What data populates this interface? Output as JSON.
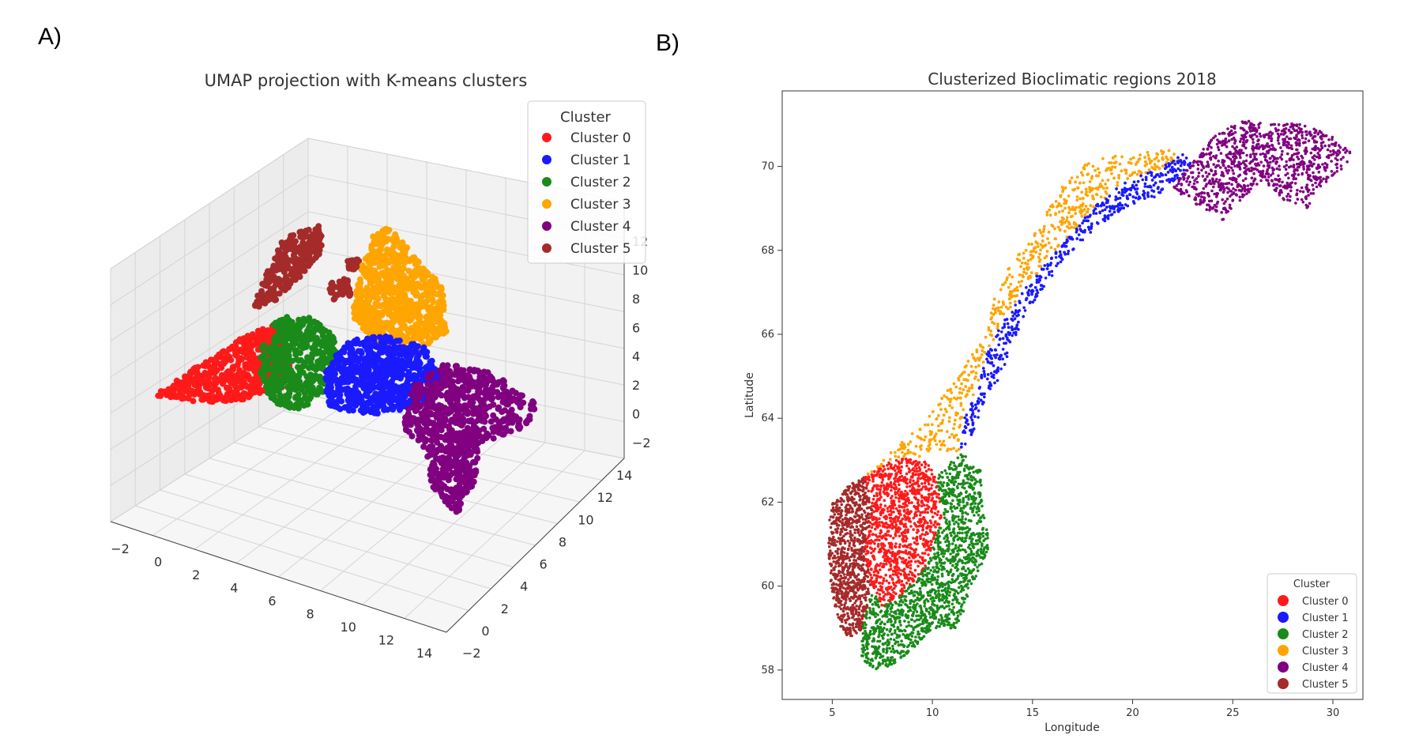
{
  "panels": {
    "a_label": "A)",
    "b_label": "B)"
  },
  "colors": {
    "Cluster 0": "#ff1a1a",
    "Cluster 1": "#1a1aff",
    "Cluster 2": "#1a8a1a",
    "Cluster 3": "#ffa500",
    "Cluster 4": "#800080",
    "Cluster 5": "#a52a2a"
  },
  "chart_data": [
    {
      "type": "scatter",
      "projection": "3d",
      "title": "UMAP projection with K-means clusters",
      "legend": {
        "title": "Cluster",
        "placement": "top-right",
        "entries": [
          "Cluster 0",
          "Cluster 1",
          "Cluster 2",
          "Cluster 3",
          "Cluster 4",
          "Cluster 5"
        ]
      },
      "x_ticks": [
        "−2",
        "0",
        "2",
        "4",
        "6",
        "8",
        "10",
        "12",
        "14"
      ],
      "y_ticks": [
        "−2",
        "0",
        "2",
        "4",
        "6",
        "8",
        "10",
        "12",
        "14"
      ],
      "z_ticks": [
        "−2",
        "0",
        "2",
        "4",
        "6",
        "8",
        "10",
        "12"
      ],
      "xlim": [
        -2,
        14
      ],
      "ylim": [
        -2,
        14
      ],
      "zlim": [
        -2,
        12
      ],
      "grid": true
    },
    {
      "type": "scatter",
      "title": "Clusterized Bioclimatic regions 2018",
      "xlabel": "Longitude",
      "ylabel": "Latitude",
      "x_ticks": [
        "5",
        "10",
        "15",
        "20",
        "25",
        "30"
      ],
      "y_ticks": [
        "58",
        "60",
        "62",
        "64",
        "66",
        "68",
        "70"
      ],
      "xlim": [
        2.5,
        31.5
      ],
      "ylim": [
        57.3,
        71.8
      ],
      "legend": {
        "title": "Cluster",
        "placement": "lower-right",
        "entries": [
          "Cluster 0",
          "Cluster 1",
          "Cluster 2",
          "Cluster 3",
          "Cluster 4",
          "Cluster 5"
        ]
      },
      "grid": false
    }
  ]
}
